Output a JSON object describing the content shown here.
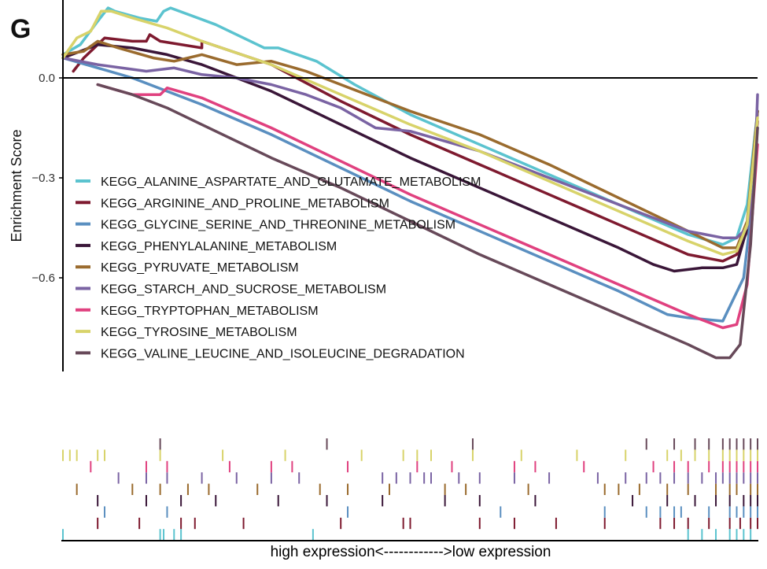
{
  "panel_label": "G",
  "chart_data": {
    "type": "line",
    "title": "",
    "panel": "G",
    "xlabel": "high expression<------------>low expression",
    "ylabel": "Enrichment Score",
    "xlim": [
      0,
      1
    ],
    "ylim": [
      -0.86,
      0.23
    ],
    "yticks": [
      {
        "value": 0.0,
        "label": "0.0"
      },
      {
        "value": -0.3,
        "label": "−0.3"
      },
      {
        "value": -0.6,
        "label": "−0.6"
      }
    ],
    "legend_position": "middle-left",
    "series": [
      {
        "name": "KEGG_ALANINE_ASPARTATE_AND_GLUTAMATE_METABOLISM",
        "color": "#5BC3CF",
        "x": [
          0.0,
          0.025,
          0.05,
          0.065,
          0.075,
          0.11,
          0.135,
          0.145,
          0.155,
          0.22,
          0.29,
          0.31,
          0.365,
          0.42,
          0.5,
          0.6,
          0.7,
          0.8,
          0.9,
          0.95,
          0.97,
          0.985,
          1.0
        ],
        "y": [
          0.07,
          0.1,
          0.17,
          0.21,
          0.2,
          0.18,
          0.17,
          0.2,
          0.21,
          0.16,
          0.09,
          0.09,
          0.05,
          -0.02,
          -0.11,
          -0.2,
          -0.29,
          -0.38,
          -0.47,
          -0.5,
          -0.48,
          -0.38,
          -0.1
        ]
      },
      {
        "name": "KEGG_ARGININE_AND_PROLINE_METABOLISM",
        "color": "#7E1A2F",
        "x": [
          0.015,
          0.03,
          0.05,
          0.06,
          0.1,
          0.12,
          0.125,
          0.14,
          0.2,
          0.2,
          0.3,
          0.4,
          0.5,
          0.6,
          0.7,
          0.8,
          0.9,
          0.95,
          0.97,
          0.985,
          1.0
        ],
        "y": [
          0.02,
          0.06,
          0.1,
          0.12,
          0.11,
          0.11,
          0.13,
          0.11,
          0.09,
          0.11,
          0.04,
          -0.07,
          -0.17,
          -0.26,
          -0.35,
          -0.44,
          -0.53,
          -0.55,
          -0.53,
          -0.46,
          -0.13
        ]
      },
      {
        "name": "KEGG_GLYCINE_SERINE_AND_THREONINE_METABOLISM",
        "color": "#5A8FC0",
        "x": [
          0.0,
          0.05,
          0.1,
          0.2,
          0.3,
          0.4,
          0.5,
          0.6,
          0.7,
          0.8,
          0.87,
          0.9,
          0.95,
          0.98,
          0.99,
          1.0
        ],
        "y": [
          0.06,
          0.03,
          0.0,
          -0.08,
          -0.17,
          -0.27,
          -0.37,
          -0.46,
          -0.55,
          -0.64,
          -0.71,
          -0.72,
          -0.73,
          -0.6,
          -0.42,
          -0.15
        ]
      },
      {
        "name": "KEGG_PHENYLALANINE_METABOLISM",
        "color": "#3A1638",
        "x": [
          0.0,
          0.05,
          0.1,
          0.15,
          0.2,
          0.3,
          0.4,
          0.5,
          0.6,
          0.7,
          0.8,
          0.85,
          0.88,
          0.92,
          0.95,
          0.97,
          0.985,
          1.0
        ],
        "y": [
          0.06,
          0.1,
          0.09,
          0.07,
          0.04,
          -0.04,
          -0.14,
          -0.24,
          -0.33,
          -0.42,
          -0.51,
          -0.56,
          -0.58,
          -0.57,
          -0.57,
          -0.56,
          -0.45,
          -0.1
        ]
      },
      {
        "name": "KEGG_PYRUVATE_METABOLISM",
        "color": "#9A6B2E",
        "x": [
          0.0,
          0.03,
          0.05,
          0.08,
          0.13,
          0.16,
          0.2,
          0.25,
          0.3,
          0.35,
          0.4,
          0.5,
          0.6,
          0.7,
          0.8,
          0.9,
          0.95,
          0.97,
          0.985,
          1.0
        ],
        "y": [
          0.07,
          0.08,
          0.11,
          0.09,
          0.06,
          0.05,
          0.07,
          0.04,
          0.05,
          0.02,
          -0.02,
          -0.1,
          -0.17,
          -0.26,
          -0.36,
          -0.46,
          -0.51,
          -0.51,
          -0.43,
          -0.1
        ]
      },
      {
        "name": "KEGG_STARCH_AND_SUCROSE_METABOLISM",
        "color": "#7A63A3",
        "x": [
          0.0,
          0.05,
          0.12,
          0.16,
          0.2,
          0.25,
          0.3,
          0.35,
          0.4,
          0.45,
          0.5,
          0.6,
          0.7,
          0.8,
          0.9,
          0.95,
          0.97,
          0.985,
          0.995,
          1.0
        ],
        "y": [
          0.06,
          0.04,
          0.02,
          0.03,
          0.01,
          0.0,
          -0.02,
          -0.05,
          -0.09,
          -0.15,
          -0.16,
          -0.22,
          -0.3,
          -0.38,
          -0.46,
          -0.48,
          -0.48,
          -0.45,
          -0.33,
          -0.05
        ]
      },
      {
        "name": "KEGG_TRYPTOPHAN_METABOLISM",
        "color": "#E0417F",
        "x": [
          0.05,
          0.1,
          0.14,
          0.15,
          0.2,
          0.3,
          0.4,
          0.5,
          0.6,
          0.7,
          0.8,
          0.9,
          0.95,
          0.97,
          0.985,
          1.0
        ],
        "y": [
          -0.02,
          -0.05,
          -0.05,
          -0.03,
          -0.06,
          -0.15,
          -0.25,
          -0.35,
          -0.44,
          -0.53,
          -0.62,
          -0.71,
          -0.75,
          -0.74,
          -0.62,
          -0.2
        ]
      },
      {
        "name": "KEGG_TYROSINE_METABOLISM",
        "color": "#D8D36A",
        "x": [
          0.0,
          0.02,
          0.04,
          0.055,
          0.07,
          0.1,
          0.15,
          0.2,
          0.3,
          0.4,
          0.5,
          0.6,
          0.7,
          0.8,
          0.9,
          0.95,
          0.97,
          0.985,
          1.0
        ],
        "y": [
          0.06,
          0.12,
          0.14,
          0.2,
          0.2,
          0.18,
          0.15,
          0.11,
          0.04,
          -0.05,
          -0.14,
          -0.22,
          -0.31,
          -0.4,
          -0.49,
          -0.53,
          -0.52,
          -0.44,
          -0.12
        ]
      },
      {
        "name": "KEGG_VALINE_LEUCINE_AND_ISOLEUCINE_DEGRADATION",
        "color": "#674959",
        "x": [
          0.05,
          0.1,
          0.15,
          0.2,
          0.3,
          0.4,
          0.5,
          0.6,
          0.7,
          0.8,
          0.9,
          0.94,
          0.96,
          0.975,
          0.99,
          1.0
        ],
        "y": [
          -0.02,
          -0.05,
          -0.09,
          -0.14,
          -0.24,
          -0.33,
          -0.43,
          -0.53,
          -0.62,
          -0.71,
          -0.8,
          -0.84,
          -0.84,
          -0.8,
          -0.5,
          -0.15
        ]
      }
    ],
    "hit_positions": [
      [
        0.0,
        0.14,
        0.145,
        0.16,
        0.17,
        0.36,
        0.9,
        0.92,
        0.94,
        0.96,
        0.97,
        0.98,
        0.99
      ],
      [
        0.05,
        0.11,
        0.17,
        0.19,
        0.26,
        0.4,
        0.49,
        0.5,
        0.6,
        0.65,
        0.71,
        0.78,
        0.86,
        0.88,
        0.9,
        0.93,
        0.96,
        0.975,
        0.99,
        1.0
      ],
      [
        0.06,
        0.15,
        0.41,
        0.63,
        0.78,
        0.84,
        0.86,
        0.88,
        0.89,
        0.93,
        0.96,
        0.97,
        0.98,
        0.99,
        1.0
      ],
      [
        0.05,
        0.12,
        0.17,
        0.22,
        0.31,
        0.38,
        0.46,
        0.55,
        0.6,
        0.68,
        0.82,
        0.87,
        0.91,
        0.94,
        0.96,
        0.98,
        0.99,
        1.0
      ],
      [
        0.02,
        0.1,
        0.14,
        0.18,
        0.21,
        0.28,
        0.37,
        0.41,
        0.47,
        0.55,
        0.58,
        0.67,
        0.78,
        0.8,
        0.83,
        0.87,
        0.9,
        0.94,
        0.96,
        0.97,
        0.99,
        1.0
      ],
      [
        0.08,
        0.12,
        0.15,
        0.2,
        0.25,
        0.3,
        0.34,
        0.46,
        0.48,
        0.5,
        0.52,
        0.53,
        0.57,
        0.6,
        0.65,
        0.7,
        0.77,
        0.81,
        0.84,
        0.86,
        0.88,
        0.9,
        0.92,
        0.94,
        0.95,
        0.96,
        0.97,
        0.98,
        0.99,
        1.0
      ],
      [
        0.04,
        0.12,
        0.15,
        0.24,
        0.3,
        0.33,
        0.41,
        0.51,
        0.56,
        0.65,
        0.68,
        0.75,
        0.85,
        0.88,
        0.9,
        0.93,
        0.95,
        0.96,
        0.97,
        0.98,
        0.99,
        1.0
      ],
      [
        0.0,
        0.01,
        0.02,
        0.05,
        0.06,
        0.14,
        0.23,
        0.32,
        0.43,
        0.49,
        0.51,
        0.53,
        0.59,
        0.66,
        0.74,
        0.81,
        0.87,
        0.89,
        0.91,
        0.93,
        0.95,
        0.96,
        0.97,
        0.98,
        0.99,
        1.0
      ],
      [
        0.14,
        0.38,
        0.59,
        0.84,
        0.88,
        0.91,
        0.93,
        0.95,
        0.96,
        0.97,
        0.98,
        0.99,
        1.0
      ]
    ]
  }
}
